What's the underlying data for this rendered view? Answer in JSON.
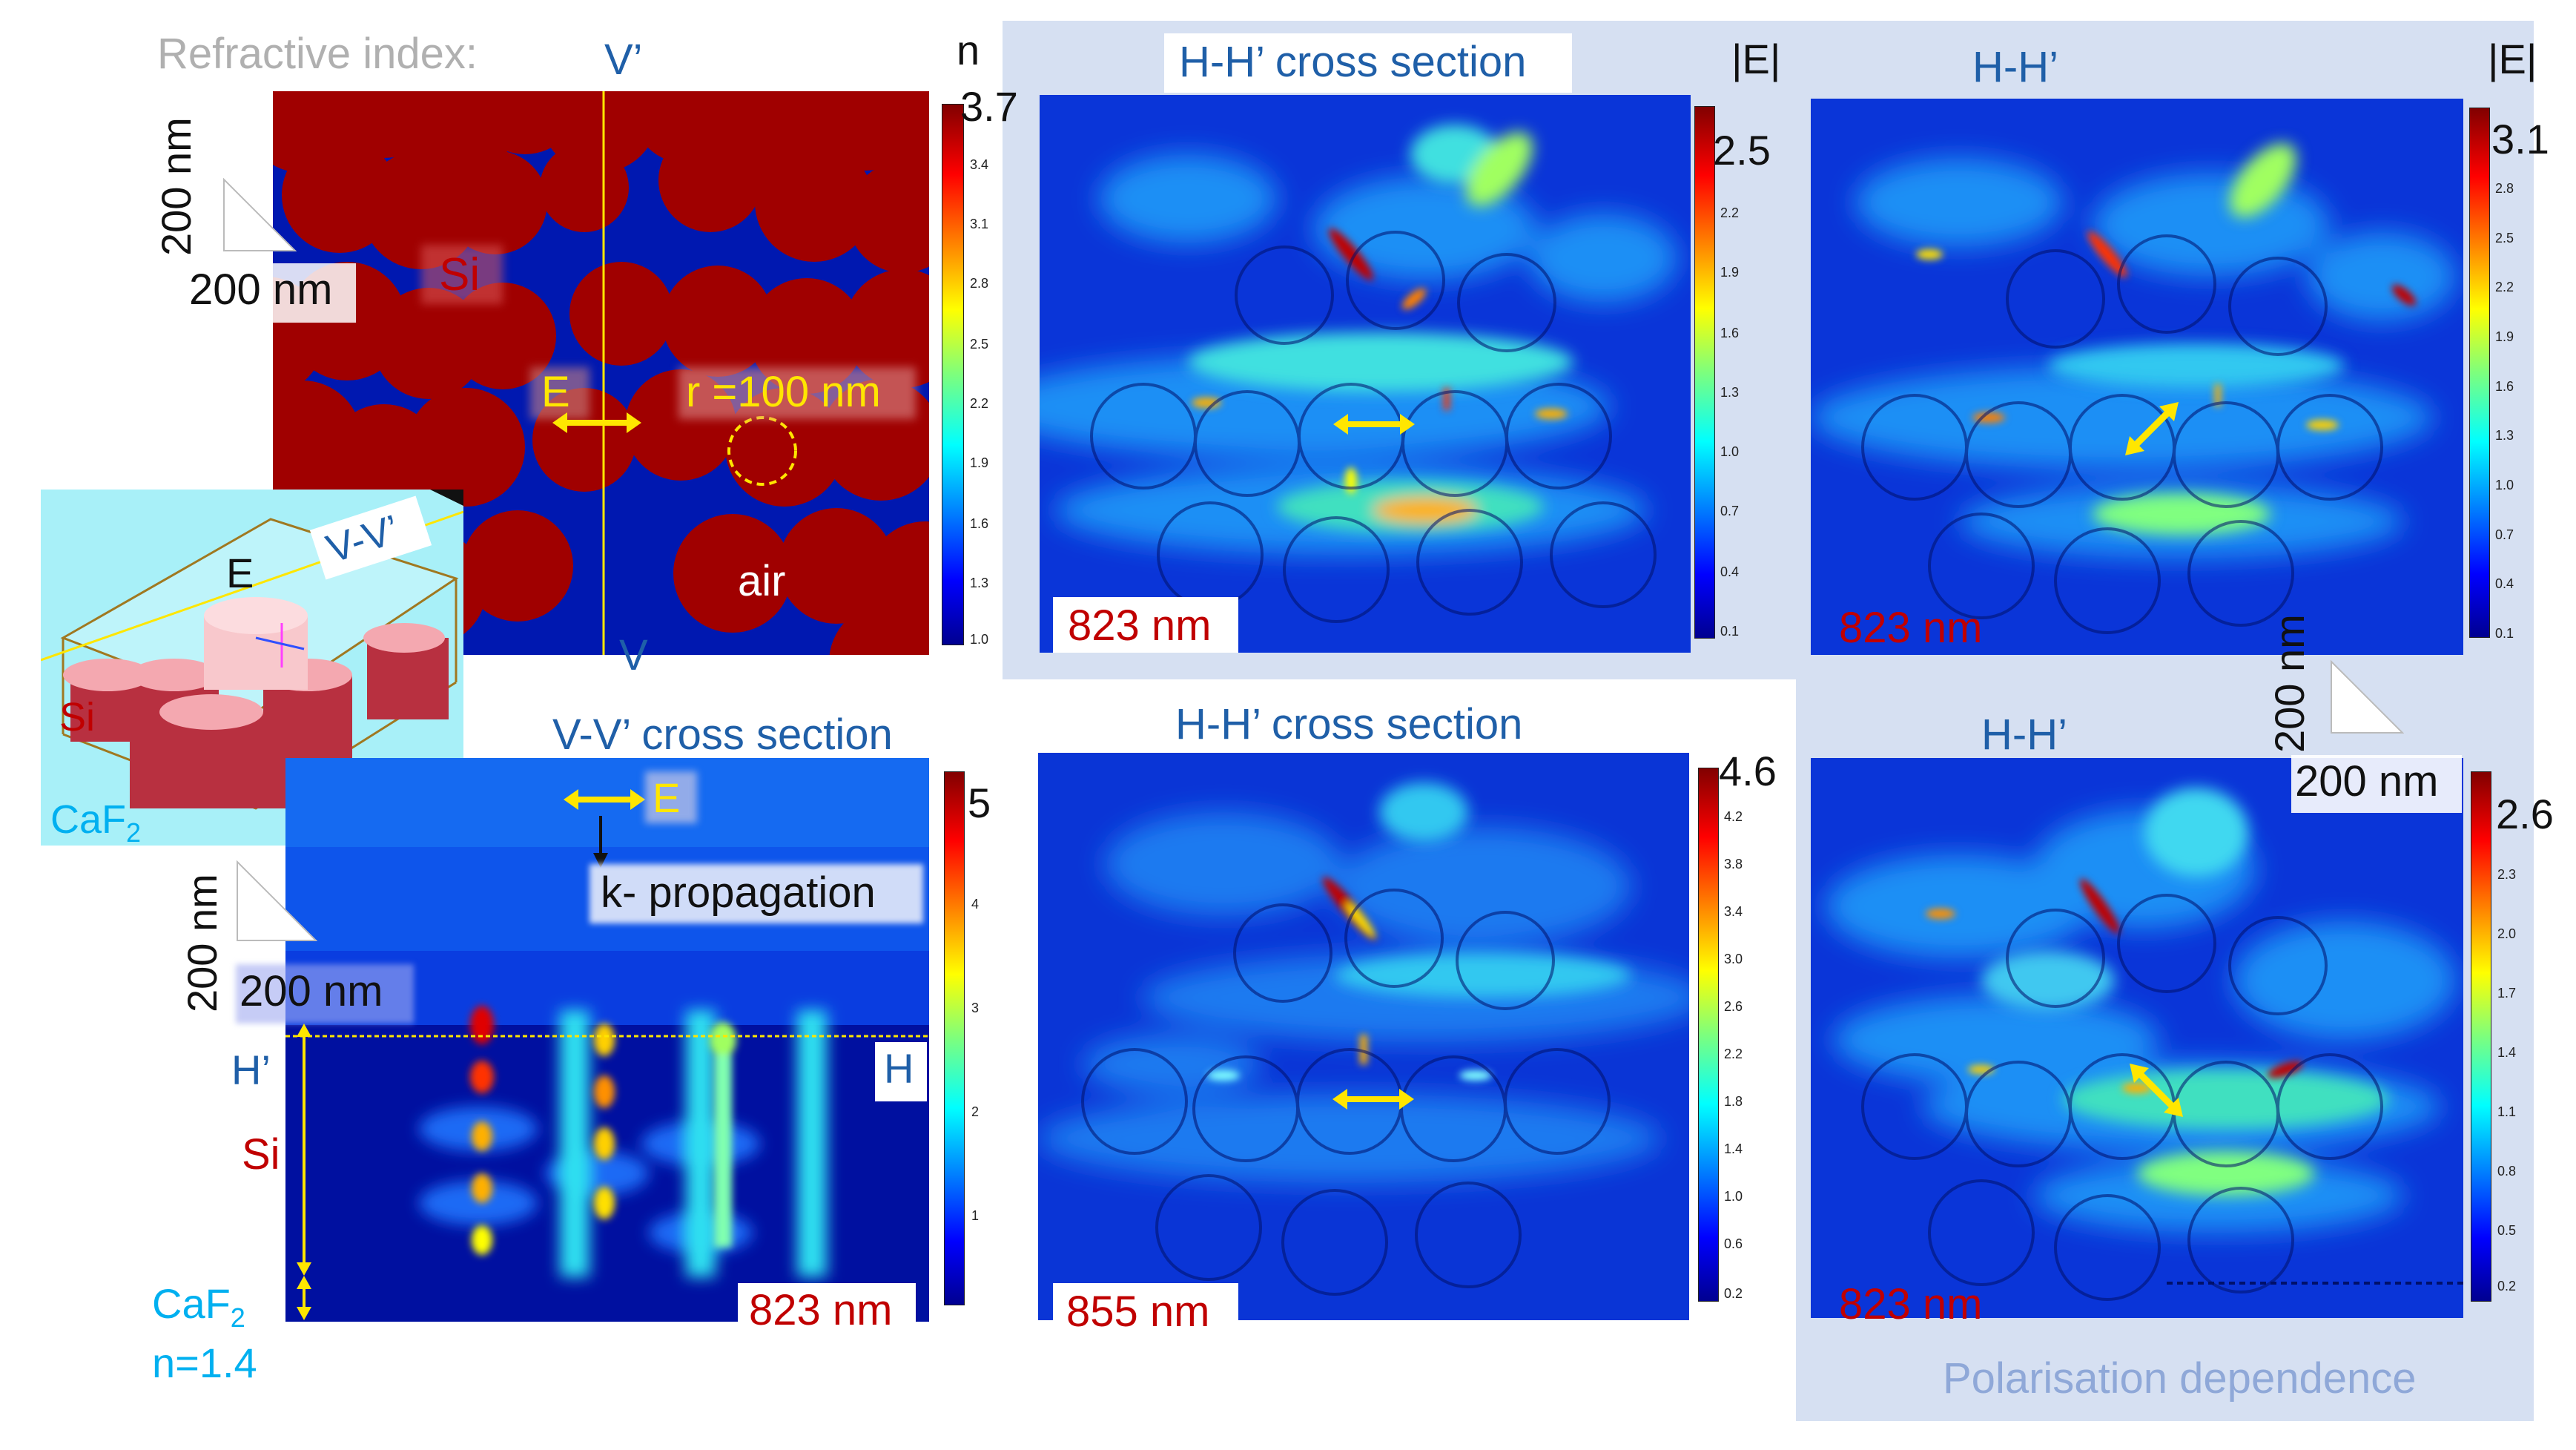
{
  "refractive_panel": {
    "title": "Refractive index:",
    "v_prime_top": "V’",
    "v_bottom": "V",
    "si_label": "Si",
    "e_label": "E",
    "radius_label": "r =100 nm",
    "air_label": "air",
    "scale_vertical": "200 nm",
    "scale_horizontal": "200 nm",
    "colorbar_unit": "n",
    "colorbar_max": "3.7",
    "colorbar_ticks": [
      "3.4",
      "3.1",
      "2.8",
      "2.5",
      "2.2",
      "1.9",
      "1.6",
      "1.3",
      "1.0"
    ]
  },
  "inset_3d": {
    "e_label": "E",
    "vv_label": "V-V’",
    "si_label": "Si",
    "caf2_label": "CaF",
    "caf2_sub": "2"
  },
  "vv_panel": {
    "title": "V-V’ cross section",
    "e_label": "E",
    "k_label": "k- propagation",
    "scale_vertical": "200 nm",
    "scale_horizontal": "200 nm",
    "h_prime": "H’",
    "h_label": "H",
    "si_label": "Si",
    "caf2_label": "CaF",
    "caf2_sub": "2",
    "caf2_n": "n=1.4",
    "wavelength": "823 nm",
    "colorbar_max": "5",
    "colorbar_ticks": [
      "4",
      "3",
      "2",
      "1"
    ]
  },
  "hh_top_panel": {
    "title": "H-H’ cross section",
    "unit": "|E|",
    "wavelength": "823 nm",
    "colorbar_max": "2.5",
    "colorbar_ticks": [
      "2.2",
      "1.9",
      "1.6",
      "1.3",
      "1.0",
      "0.7",
      "0.4",
      "0.1"
    ]
  },
  "hh_bottom_panel": {
    "title": "H-H’ cross section",
    "wavelength": "855 nm",
    "colorbar_max": "4.6",
    "colorbar_ticks": [
      "4.2",
      "3.8",
      "3.4",
      "3.0",
      "2.6",
      "2.2",
      "1.8",
      "1.4",
      "1.0",
      "0.6",
      "0.2"
    ]
  },
  "pol_top_panel": {
    "title": "H-H’",
    "unit": "|E|",
    "wavelength": "823 nm",
    "colorbar_max": "3.1",
    "colorbar_ticks": [
      "2.8",
      "2.5",
      "2.2",
      "1.9",
      "1.6",
      "1.3",
      "1.0",
      "0.7",
      "0.4",
      "0.1"
    ]
  },
  "pol_bottom_panel": {
    "title": "H-H’",
    "wavelength": "823 nm",
    "scale_vertical": "200 nm",
    "scale_horizontal": "200 nm",
    "colorbar_max": "2.6",
    "colorbar_ticks": [
      "2.3",
      "2.0",
      "1.7",
      "1.4",
      "1.1",
      "0.8",
      "0.5",
      "0.2"
    ]
  },
  "pol_caption": "Polarisation dependence",
  "colors": {
    "map_deep_blue": "#000a8a",
    "map_blue": "#0b3fd8",
    "si_red": "#a00000",
    "arrow_yellow": "#ffe600",
    "panel_bg": "#d6e0f2",
    "label_blue": "#1f5fa8",
    "label_red": "#c00000"
  }
}
